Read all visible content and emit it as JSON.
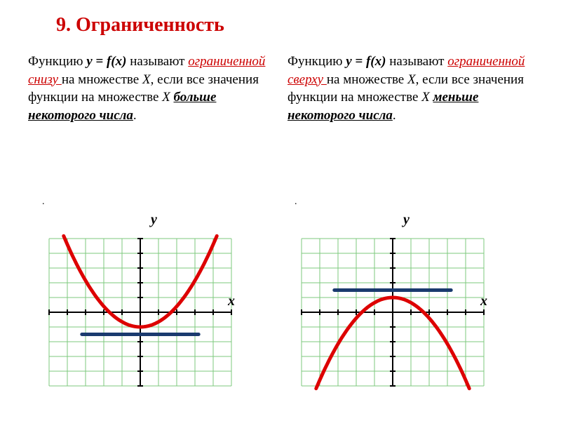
{
  "title": "9. Ограниченность",
  "left_desc": {
    "prefix": "Функцию ",
    "func": "y = f(x)",
    "mid1": " называют ",
    "bounded": "ограниченной снизу ",
    "mid2": "на множестве ",
    "set1": "X",
    "mid3": ", если все значения функции на множестве ",
    "set2": "X",
    "space": " ",
    "condition": "больше некоторого числа",
    "period": "."
  },
  "right_desc": {
    "prefix": "Функцию ",
    "func": "y = f(x)",
    "mid1": " называют ",
    "bounded": "ограниченной сверху ",
    "mid2": "на множестве ",
    "set1": "X",
    "mid3": ", если все значения функции на множестве ",
    "set2": "X",
    "space": " ",
    "condition": "меньше некоторого числа",
    "period": "."
  },
  "chart_style": {
    "grid_color": "#7ec97e",
    "axis_color": "#000000",
    "curve_color": "#dd0000",
    "bound_line_color": "#1a3a6e",
    "background": "#ffffff",
    "curve_width": 5,
    "bound_width": 5,
    "grid_width": 1,
    "axis_width": 2
  },
  "left_chart": {
    "type": "parabola",
    "direction": "up",
    "vertex_y": -1,
    "grid_cells": 10,
    "bound_y": -1.5,
    "y_label": "y",
    "x_label": "x"
  },
  "right_chart": {
    "type": "parabola",
    "direction": "down",
    "vertex_y": 1,
    "grid_cells": 10,
    "bound_y": 1.5,
    "y_label": "y",
    "x_label": "x"
  }
}
